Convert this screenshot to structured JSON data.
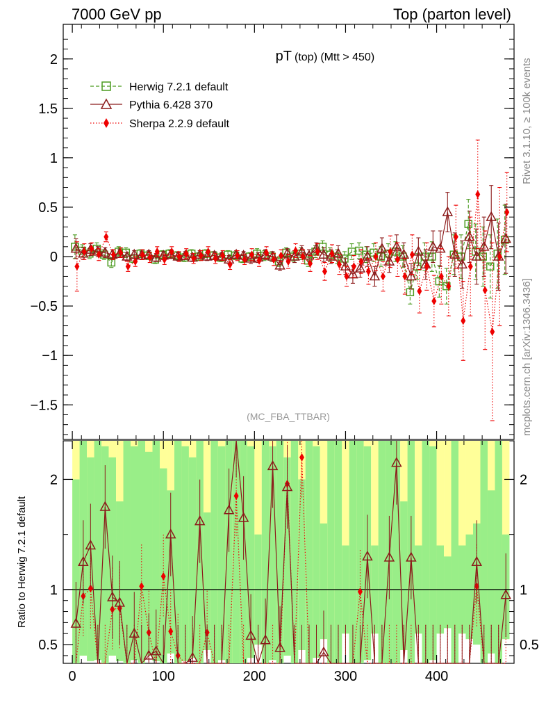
{
  "header": {
    "left": "7000 GeV pp",
    "right": "Top (parton level)"
  },
  "side_labels": {
    "rivet": "Rivet 3.1.10, ≥ 100k events",
    "mcplots": "mcplots.cern.ch [arXiv:1306.3436]"
  },
  "colors": {
    "herwig": "#4a9a1e",
    "pythia": "#8b1a1a",
    "sherpa": "#ee0000",
    "band_inner": "#99ee88",
    "band_outer": "#ffff99"
  },
  "chart_data": [
    {
      "type": "scatter",
      "panel": "main",
      "title_main": "pT",
      "title_sub": "(top) (Mtt > 450)",
      "analysis": "(MC_FBA_TTBAR)",
      "xlim": [
        -10,
        485
      ],
      "ylim": [
        -1.85,
        2.35
      ],
      "yticks": [
        -1.5,
        -1,
        -0.5,
        0,
        0.5,
        1,
        1.5,
        2
      ],
      "ytick_labels": [
        "−1.5",
        "−1",
        "−0.5",
        "0",
        "0.5",
        "1",
        "1.5",
        "2"
      ],
      "legend_position": "top-left",
      "series": [
        {
          "name": "Herwig 7.2.1 default",
          "marker": "open-square",
          "line": "dashed",
          "x": [
            4,
            12,
            20,
            28,
            36,
            44,
            52,
            60,
            68,
            76,
            84,
            92,
            100,
            108,
            116,
            124,
            132,
            140,
            148,
            156,
            164,
            172,
            180,
            188,
            196,
            204,
            212,
            220,
            228,
            236,
            244,
            252,
            260,
            268,
            276,
            284,
            292,
            300,
            308,
            316,
            324,
            332,
            340,
            348,
            356,
            364,
            372,
            380,
            388,
            396,
            404,
            412,
            420,
            428,
            436,
            444,
            452,
            460,
            468,
            476
          ],
          "y": [
            0.1,
            0.06,
            0.03,
            0.08,
            0.02,
            -0.06,
            0.05,
            0.04,
            -0.02,
            0.03,
            0.01,
            -0.03,
            0.02,
            0.03,
            0.01,
            -0.01,
            0.03,
            0.0,
            0.03,
            0.01,
            -0.01,
            0.02,
            0.01,
            -0.02,
            0.0,
            0.03,
            0.01,
            0.0,
            -0.05,
            0.04,
            0.0,
            0.03,
            -0.04,
            0.05,
            0.1,
            0.02,
            0.0,
            -0.02,
            0.05,
            0.06,
            0.02,
            0.04,
            0.0,
            0.03,
            0.05,
            0.0,
            -0.36,
            -0.1,
            0.0,
            0.0,
            -0.25,
            -0.3,
            0.02,
            0.0,
            0.33,
            0.05,
            0.0,
            -0.1,
            0.03,
            0.17
          ],
          "err": [
            0.12,
            0.06,
            0.05,
            0.06,
            0.05,
            0.05,
            0.05,
            0.05,
            0.04,
            0.04,
            0.04,
            0.04,
            0.04,
            0.04,
            0.04,
            0.04,
            0.04,
            0.04,
            0.04,
            0.04,
            0.04,
            0.04,
            0.04,
            0.04,
            0.04,
            0.05,
            0.05,
            0.05,
            0.05,
            0.05,
            0.05,
            0.06,
            0.06,
            0.06,
            0.06,
            0.07,
            0.07,
            0.07,
            0.08,
            0.08,
            0.08,
            0.09,
            0.1,
            0.1,
            0.1,
            0.11,
            0.12,
            0.13,
            0.14,
            0.15,
            0.16,
            0.18,
            0.2,
            0.22,
            0.25,
            0.28,
            0.3,
            0.32,
            0.35,
            0.35
          ]
        },
        {
          "name": "Pythia 6.428 370",
          "marker": "open-triangle",
          "line": "solid",
          "x": [
            4,
            12,
            20,
            28,
            36,
            44,
            52,
            60,
            68,
            76,
            84,
            92,
            100,
            108,
            116,
            124,
            132,
            140,
            148,
            156,
            164,
            172,
            180,
            188,
            196,
            204,
            212,
            220,
            228,
            236,
            244,
            252,
            260,
            268,
            276,
            284,
            292,
            300,
            308,
            316,
            324,
            332,
            340,
            348,
            356,
            364,
            372,
            380,
            388,
            396,
            404,
            412,
            420,
            428,
            436,
            444,
            452,
            460,
            468,
            476
          ],
          "y": [
            0.08,
            0.03,
            0.07,
            0.05,
            0.04,
            0.02,
            0.03,
            0.0,
            0.02,
            0.01,
            0.02,
            -0.01,
            0.01,
            0.02,
            0.0,
            0.01,
            -0.01,
            0.02,
            0.0,
            0.01,
            0.0,
            -0.03,
            0.02,
            0.01,
            -0.02,
            -0.01,
            0.02,
            0.0,
            -0.09,
            0.03,
            0.0,
            0.05,
            0.01,
            0.08,
            0.02,
            0.0,
            0.03,
            -0.1,
            -0.18,
            -0.12,
            0.0,
            -0.2,
            0.08,
            -0.05,
            0.1,
            0.02,
            -0.2,
            0.05,
            -0.08,
            0.1,
            0.08,
            0.45,
            0.02,
            -0.08,
            0.2,
            0.0,
            0.1,
            0.4,
            0.0,
            0.18
          ],
          "err": [
            0.1,
            0.06,
            0.06,
            0.05,
            0.05,
            0.05,
            0.04,
            0.04,
            0.04,
            0.04,
            0.04,
            0.04,
            0.04,
            0.04,
            0.04,
            0.04,
            0.04,
            0.04,
            0.04,
            0.04,
            0.04,
            0.04,
            0.04,
            0.04,
            0.05,
            0.05,
            0.05,
            0.05,
            0.05,
            0.05,
            0.06,
            0.06,
            0.06,
            0.06,
            0.07,
            0.07,
            0.08,
            0.08,
            0.09,
            0.09,
            0.1,
            0.1,
            0.11,
            0.11,
            0.12,
            0.12,
            0.13,
            0.14,
            0.15,
            0.16,
            0.18,
            0.2,
            0.22,
            0.24,
            0.26,
            0.28,
            0.3,
            0.32,
            0.34,
            0.35
          ]
        },
        {
          "name": "Sherpa 2.2.9 default",
          "marker": "filled-diamond",
          "line": "dotted",
          "x": [
            4,
            12,
            20,
            28,
            36,
            44,
            52,
            60,
            68,
            76,
            84,
            92,
            100,
            108,
            116,
            124,
            132,
            140,
            148,
            156,
            164,
            172,
            180,
            188,
            196,
            204,
            212,
            220,
            228,
            236,
            244,
            252,
            260,
            268,
            276,
            284,
            292,
            300,
            308,
            316,
            324,
            332,
            340,
            348,
            356,
            364,
            372,
            380,
            388,
            396,
            404,
            412,
            420,
            428,
            436,
            444,
            452,
            460,
            468,
            476
          ],
          "y": [
            -0.1,
            0.05,
            0.08,
            0.02,
            0.2,
            0.02,
            0.04,
            -0.1,
            -0.05,
            0.02,
            -0.01,
            0.05,
            -0.03,
            0.05,
            0.0,
            0.03,
            -0.02,
            0.01,
            0.05,
            -0.02,
            0.01,
            -0.08,
            0.01,
            -0.03,
            0.02,
            -0.04,
            0.04,
            -0.03,
            0.01,
            -0.05,
            0.06,
            0.0,
            -0.07,
            0.05,
            -0.15,
            0.03,
            -0.08,
            -0.2,
            -0.1,
            -0.05,
            -0.15,
            0.0,
            -0.2,
            0.05,
            -0.03,
            -0.2,
            0.02,
            -0.35,
            -0.1,
            -0.45,
            -0.2,
            -0.3,
            0.2,
            -0.65,
            -0.1,
            0.63,
            -0.34,
            -0.76,
            0.0,
            0.45
          ],
          "err": [
            0.25,
            0.08,
            0.06,
            0.06,
            0.05,
            0.05,
            0.05,
            0.05,
            0.05,
            0.05,
            0.05,
            0.05,
            0.05,
            0.05,
            0.05,
            0.05,
            0.05,
            0.05,
            0.05,
            0.05,
            0.05,
            0.05,
            0.05,
            0.05,
            0.06,
            0.06,
            0.06,
            0.06,
            0.06,
            0.07,
            0.07,
            0.07,
            0.08,
            0.08,
            0.09,
            0.09,
            0.1,
            0.1,
            0.11,
            0.12,
            0.13,
            0.14,
            0.15,
            0.16,
            0.17,
            0.18,
            0.2,
            0.22,
            0.24,
            0.26,
            0.28,
            0.3,
            0.32,
            0.4,
            0.5,
            0.55,
            0.6,
            0.9,
            0.7,
            0.4
          ]
        }
      ]
    },
    {
      "type": "line",
      "panel": "ratio",
      "ylabel": "Ratio to Herwig 7.2.1 default",
      "xlim": [
        -10,
        485
      ],
      "ylim": [
        0.33,
        2.35
      ],
      "yticks": [
        0.5,
        1,
        2
      ],
      "ytick_labels": [
        "0.5",
        "1",
        "2"
      ],
      "xticks": [
        0,
        100,
        200,
        300,
        400
      ],
      "xtick_labels": [
        "0",
        "100",
        "200",
        "300",
        "400"
      ],
      "reference": 1,
      "pythia_ratio": [
        0.69,
        1.25,
        1.4,
        0.3,
        1.75,
        0.93,
        0.88,
        0.3,
        0.6,
        0.3,
        0.4,
        0.44,
        0.3,
        1.5,
        0.3,
        0.3,
        0.38,
        1.62,
        0.3,
        0.3,
        0.3,
        1.72,
        2.4,
        1.65,
        0.58,
        0.3,
        0.54,
        2.12,
        0.47,
        1.93,
        0.3,
        0.3,
        0.3,
        0.3,
        0.43,
        0.3,
        0.3,
        0.3,
        0.3,
        0.3,
        1.3,
        0.3,
        0.3,
        1.29,
        2.15,
        0.3,
        1.29,
        0.3,
        0.3,
        0.3,
        0.3,
        0.3,
        0.3,
        0.3,
        0.3,
        1.25,
        0.3,
        0.3,
        0.3,
        0.95
      ],
      "sherpa_ratio": [
        0.3,
        0.94,
        1.01,
        0.3,
        0.3,
        0.82,
        0.83,
        0.3,
        0.3,
        1.03,
        0.61,
        0.3,
        1.12,
        0.62,
        0.4,
        0.3,
        0.3,
        0.3,
        0.61,
        0.3,
        0.3,
        0.3,
        1.85,
        0.3,
        0.3,
        0.3,
        0.3,
        0.3,
        0.3,
        1.96,
        0.3,
        2.2,
        0.3,
        0.3,
        0.3,
        0.3,
        0.3,
        0.3,
        0.3,
        0.98,
        0.3,
        0.3,
        0.3,
        0.3,
        0.3,
        0.3,
        0.3,
        0.3,
        0.3,
        0.3,
        0.3,
        0.3,
        0.3,
        0.3,
        0.3,
        1.03,
        0.3,
        0.3,
        0.3,
        0.3
      ],
      "band_inner": [
        2.0,
        2.4,
        2.2,
        2.4,
        2.3,
        2.2,
        1.8,
        2.4,
        2.3,
        2.4,
        2.25,
        2.4,
        2.1,
        1.9,
        2.4,
        2.3,
        2.2,
        2.4,
        1.7,
        2.4,
        2.3,
        2.4,
        2.4,
        2.4,
        2.3,
        1.5,
        2.4,
        2.3,
        2.4,
        2.2,
        2.4,
        2.0,
        2.4,
        2.3,
        1.6,
        2.4,
        2.4,
        1.4,
        2.4,
        2.4,
        2.3,
        1.4,
        2.4,
        2.4,
        2.4,
        1.8,
        2.4,
        1.4,
        2.4,
        2.3,
        1.4,
        1.3,
        2.4,
        1.4,
        1.5,
        1.6,
        2.4,
        1.9,
        2.4,
        1.5
      ],
      "band_outer": [
        2.4,
        2.4,
        2.4,
        2.4,
        2.4,
        2.4,
        2.4,
        2.4,
        2.4,
        2.4,
        2.4,
        2.4,
        2.4,
        2.4,
        2.4,
        2.4,
        2.4,
        2.4,
        2.4,
        2.4,
        2.4,
        2.4,
        2.4,
        2.4,
        2.4,
        2.4,
        2.4,
        2.4,
        2.4,
        2.4,
        2.4,
        2.4,
        2.4,
        2.4,
        2.4,
        2.4,
        2.4,
        2.4,
        2.4,
        2.4,
        2.4,
        2.4,
        2.4,
        2.4,
        2.4,
        2.4,
        2.4,
        2.4,
        2.4,
        2.4,
        2.4,
        2.4,
        2.4,
        2.4,
        2.4,
        2.4,
        2.4,
        2.4,
        2.4,
        2.4
      ],
      "band_lower": [
        0.33,
        0.4,
        0.35,
        0.36,
        0.33,
        0.4,
        0.35,
        0.33,
        0.36,
        0.33,
        0.4,
        0.35,
        0.33,
        0.42,
        0.33,
        0.35,
        0.38,
        0.33,
        0.45,
        0.33,
        0.36,
        0.33,
        0.33,
        0.33,
        0.38,
        0.5,
        0.33,
        0.36,
        0.33,
        0.4,
        0.33,
        0.45,
        0.33,
        0.38,
        0.55,
        0.33,
        0.33,
        0.6,
        0.33,
        0.33,
        0.36,
        0.6,
        0.33,
        0.33,
        0.33,
        0.45,
        0.33,
        0.6,
        0.33,
        0.36,
        0.6,
        0.65,
        0.33,
        0.6,
        0.55,
        0.5,
        0.33,
        0.42,
        0.33,
        0.55
      ]
    }
  ]
}
